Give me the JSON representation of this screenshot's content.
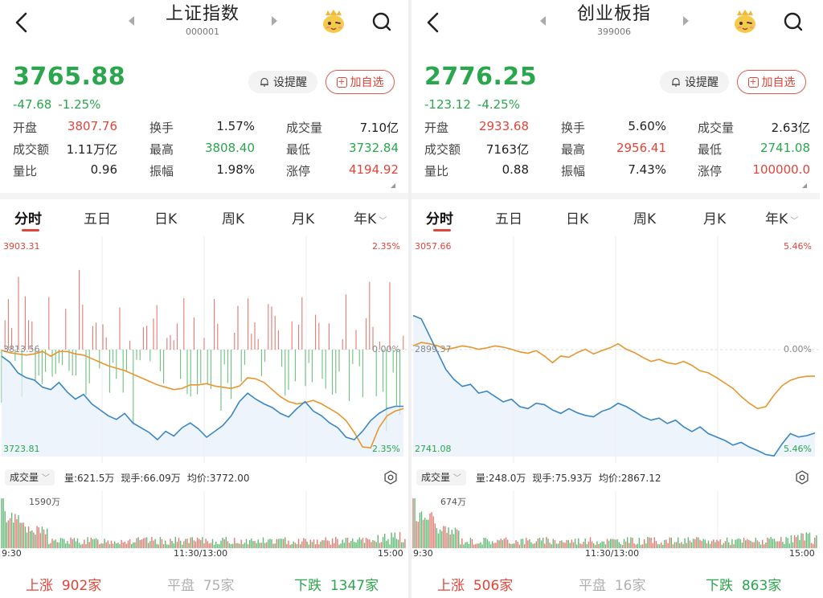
{
  "colors": {
    "up": "#e0453a",
    "down": "#2aa64c",
    "avg_line": "#e8962f",
    "price_line": "#3a87c4",
    "flat": "#b0b0b0"
  },
  "icons": {
    "back": "chevron-left-icon",
    "prev": "caret-left-icon",
    "next": "caret-right-icon",
    "mascot": "mascot-icon",
    "search": "search-icon",
    "bell": "bell-icon",
    "add": "plus-square-icon",
    "gear": "gear-icon"
  },
  "panels": [
    {
      "title": "上证指数",
      "code": "000001",
      "price": "3765.88",
      "change": "-47.68",
      "change_pct": "-1.25%",
      "alert_label": "设提醒",
      "add_label": "加自选",
      "stats": [
        [
          {
            "label": "开盘",
            "value": "3807.76",
            "tone": "red"
          },
          {
            "label": "换手",
            "value": "1.57%",
            "tone": "dark"
          },
          {
            "label": "成交量",
            "value": "7.10亿",
            "tone": "dark"
          }
        ],
        [
          {
            "label": "成交额",
            "value": "1.11万亿",
            "tone": "dark"
          },
          {
            "label": "最高",
            "value": "3808.40",
            "tone": "green"
          },
          {
            "label": "最低",
            "value": "3732.84",
            "tone": "green"
          }
        ],
        [
          {
            "label": "量比",
            "value": "0.96",
            "tone": "dark"
          },
          {
            "label": "振幅",
            "value": "1.98%",
            "tone": "dark"
          },
          {
            "label": "涨停",
            "value": "4194.92",
            "tone": "red"
          }
        ]
      ],
      "tabs": [
        "分时",
        "五日",
        "日K",
        "周K",
        "月K",
        "年K"
      ],
      "chart": {
        "top_price": "3903.31",
        "top_pct": "2.35%",
        "mid_price": "3813.56",
        "mid_pct": "0.00%",
        "bottom_price": "3723.81",
        "bottom_pct": "2.35%"
      },
      "volume": {
        "menu_label": "成交量",
        "vol": "量:621.5万",
        "hand": "现手:66.09万",
        "avg": "均价:3772.00",
        "max_label": "1590万"
      },
      "times": [
        "9:30",
        "11:30/13:00",
        "15:00"
      ],
      "breadth": {
        "up_label": "上涨",
        "up_count": "902家",
        "flat_label": "平盘",
        "flat_count": "75家",
        "down_label": "下跌",
        "down_count": "1347家"
      }
    },
    {
      "title": "创业板指",
      "code": "399006",
      "price": "2776.25",
      "change": "-123.12",
      "change_pct": "-4.25%",
      "alert_label": "设提醒",
      "add_label": "加自选",
      "stats": [
        [
          {
            "label": "开盘",
            "value": "2933.68",
            "tone": "red"
          },
          {
            "label": "换手",
            "value": "5.60%",
            "tone": "dark"
          },
          {
            "label": "成交量",
            "value": "2.63亿",
            "tone": "dark"
          }
        ],
        [
          {
            "label": "成交额",
            "value": "7163亿",
            "tone": "dark"
          },
          {
            "label": "最高",
            "value": "2956.41",
            "tone": "red"
          },
          {
            "label": "最低",
            "value": "2741.08",
            "tone": "green"
          }
        ],
        [
          {
            "label": "量比",
            "value": "0.88",
            "tone": "dark"
          },
          {
            "label": "振幅",
            "value": "7.43%",
            "tone": "dark"
          },
          {
            "label": "涨停",
            "value": "100000.0",
            "tone": "red"
          }
        ]
      ],
      "tabs": [
        "分时",
        "五日",
        "日K",
        "周K",
        "月K",
        "年K"
      ],
      "chart": {
        "top_price": "3057.66",
        "top_pct": "5.46%",
        "mid_price": "2899.37",
        "mid_pct": "0.00%",
        "bottom_price": "2741.08",
        "bottom_pct": "5.46%"
      },
      "volume": {
        "menu_label": "成交量",
        "vol": "量:248.0万",
        "hand": "现手:75.93万",
        "avg": "均价:2867.12",
        "max_label": "674万"
      },
      "times": [
        "9:30",
        "11:30/13:00",
        "15:00"
      ],
      "breadth": {
        "up_label": "上涨",
        "up_count": "506家",
        "flat_label": "平盘",
        "flat_count": "16家",
        "down_label": "下跌",
        "down_count": "863家"
      }
    }
  ],
  "chart_data": [
    {
      "type": "line",
      "title": "上证指数",
      "y_range": [
        3723.81,
        3903.31
      ],
      "prev_close": 3813.56,
      "series": [
        {
          "values": [
            3808,
            3803,
            3794,
            3790,
            3788,
            3782,
            3780,
            3786,
            3778,
            3772,
            3776,
            3768,
            3763,
            3758,
            3755,
            3760,
            3752,
            3748,
            3744,
            3738,
            3745,
            3741,
            3748,
            3752,
            3747,
            3740,
            3745,
            3750,
            3758,
            3770,
            3777,
            3772,
            3768,
            3765,
            3760,
            3757,
            3764,
            3770,
            3762,
            3758,
            3752,
            3748,
            3740,
            3738,
            3745,
            3754,
            3760,
            3764,
            3766,
            3766
          ]
        },
        {
          "values": [
            3813,
            3811,
            3810,
            3809,
            3810,
            3812,
            3808,
            3812,
            3812,
            3810,
            3809,
            3806,
            3803,
            3800,
            3798,
            3796,
            3793,
            3790,
            3787,
            3784,
            3782,
            3780,
            3781,
            3784,
            3784,
            3785,
            3783,
            3782,
            3781,
            3783,
            3790,
            3789,
            3786,
            3780,
            3774,
            3770,
            3768,
            3769,
            3771,
            3768,
            3764,
            3760,
            3754,
            3744,
            3732,
            3731,
            3748,
            3758,
            3762,
            3764
          ]
        }
      ]
    },
    {
      "type": "line",
      "title": "创业板指",
      "y_range": [
        2741.08,
        3057.66
      ],
      "prev_close": 2899.37,
      "series": [
        {
          "values": [
            2950,
            2945,
            2920,
            2895,
            2870,
            2855,
            2845,
            2848,
            2835,
            2838,
            2830,
            2822,
            2826,
            2815,
            2812,
            2820,
            2818,
            2810,
            2805,
            2812,
            2806,
            2802,
            2800,
            2808,
            2812,
            2820,
            2815,
            2808,
            2800,
            2795,
            2798,
            2790,
            2795,
            2785,
            2778,
            2785,
            2775,
            2770,
            2765,
            2758,
            2762,
            2755,
            2750,
            2744,
            2742,
            2760,
            2775,
            2770,
            2772,
            2776
          ]
        },
        {
          "values": [
            2905,
            2910,
            2908,
            2905,
            2900,
            2902,
            2905,
            2903,
            2900,
            2902,
            2905,
            2903,
            2900,
            2896,
            2894,
            2898,
            2890,
            2880,
            2890,
            2888,
            2895,
            2900,
            2893,
            2898,
            2902,
            2908,
            2900,
            2895,
            2888,
            2882,
            2885,
            2880,
            2878,
            2882,
            2876,
            2868,
            2865,
            2858,
            2850,
            2842,
            2830,
            2820,
            2812,
            2815,
            2832,
            2846,
            2854,
            2858,
            2860,
            2860
          ]
        }
      ]
    }
  ]
}
